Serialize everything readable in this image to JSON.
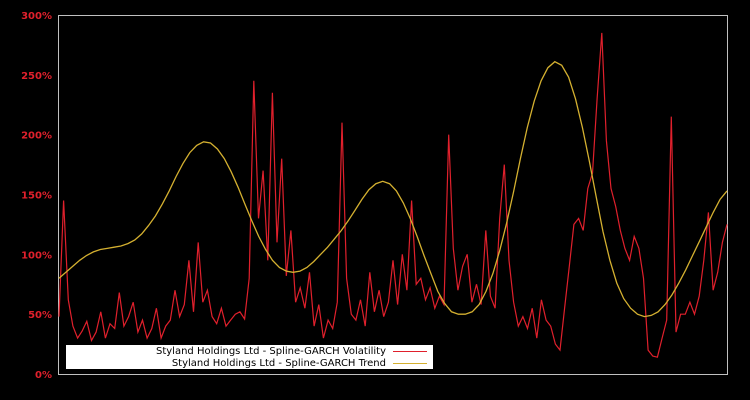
{
  "chart_data": {
    "type": "line",
    "title": "",
    "xlabel": "",
    "ylabel": "",
    "ylim": [
      0,
      300
    ],
    "y_ticks": [
      "0%",
      "50%",
      "100%",
      "150%",
      "200%",
      "250%",
      "300%"
    ],
    "y_tick_values": [
      0,
      50,
      100,
      150,
      200,
      250,
      300
    ],
    "x_tick_labels": [],
    "grid": false,
    "background": "#000000",
    "frame_color": "#c0c0c0",
    "legend_position": "lower left",
    "x_index_range": [
      0,
      133
    ],
    "series": [
      {
        "name": "Styland Holdings Ltd - Spline-GARCH Volatility",
        "color": "#e0202c",
        "values": [
          48,
          145,
          62,
          40,
          30,
          36,
          44,
          28,
          35,
          52,
          30,
          42,
          38,
          68,
          40,
          48,
          60,
          35,
          45,
          30,
          38,
          55,
          30,
          40,
          45,
          70,
          48,
          58,
          95,
          52,
          110,
          60,
          70,
          48,
          42,
          55,
          40,
          45,
          50,
          52,
          46,
          80,
          245,
          130,
          170,
          95,
          235,
          110,
          180,
          82,
          120,
          60,
          72,
          55,
          85,
          40,
          58,
          30,
          45,
          38,
          60,
          210,
          80,
          50,
          45,
          62,
          40,
          85,
          52,
          70,
          48,
          60,
          95,
          58,
          100,
          70,
          145,
          75,
          80,
          62,
          72,
          55,
          65,
          58,
          200,
          105,
          70,
          90,
          100,
          60,
          75,
          58,
          120,
          65,
          55,
          130,
          175,
          95,
          60,
          40,
          48,
          38,
          55,
          30,
          62,
          45,
          40,
          25,
          20,
          55,
          90,
          125,
          130,
          120,
          155,
          168,
          230,
          285,
          195,
          155,
          140,
          120,
          105,
          95,
          115,
          105,
          80,
          20,
          15,
          14,
          30,
          45,
          215,
          35,
          50,
          50,
          60,
          50,
          65,
          95,
          135,
          70,
          85,
          110,
          125
        ]
      },
      {
        "name": "Styland Holdings Ltd - Spline-GARCH Trend",
        "color": "#d4b030",
        "values": [
          80,
          85,
          90,
          95,
          99,
          102,
          104,
          105,
          106,
          107,
          109,
          112,
          117,
          124,
          132,
          142,
          153,
          165,
          176,
          185,
          191,
          194,
          193,
          188,
          180,
          169,
          156,
          142,
          128,
          115,
          104,
          95,
          89,
          86,
          85,
          86,
          89,
          94,
          100,
          106,
          113,
          120,
          128,
          137,
          146,
          154,
          159,
          161,
          159,
          153,
          143,
          130,
          115,
          99,
          84,
          69,
          59,
          52,
          50,
          50,
          52,
          58,
          69,
          84,
          103,
          126,
          152,
          180,
          206,
          228,
          245,
          256,
          261,
          258,
          248,
          230,
          206,
          178,
          148,
          119,
          95,
          76,
          63,
          55,
          50,
          48,
          49,
          52,
          58,
          66,
          76,
          87,
          99,
          111,
          123,
          135,
          146,
          153
        ]
      }
    ]
  },
  "legend": {
    "items": [
      {
        "label": "Styland Holdings Ltd - Spline-GARCH Volatility",
        "color": "#e0202c"
      },
      {
        "label": "Styland Holdings Ltd - Spline-GARCH Trend",
        "color": "#d4b030"
      }
    ]
  }
}
